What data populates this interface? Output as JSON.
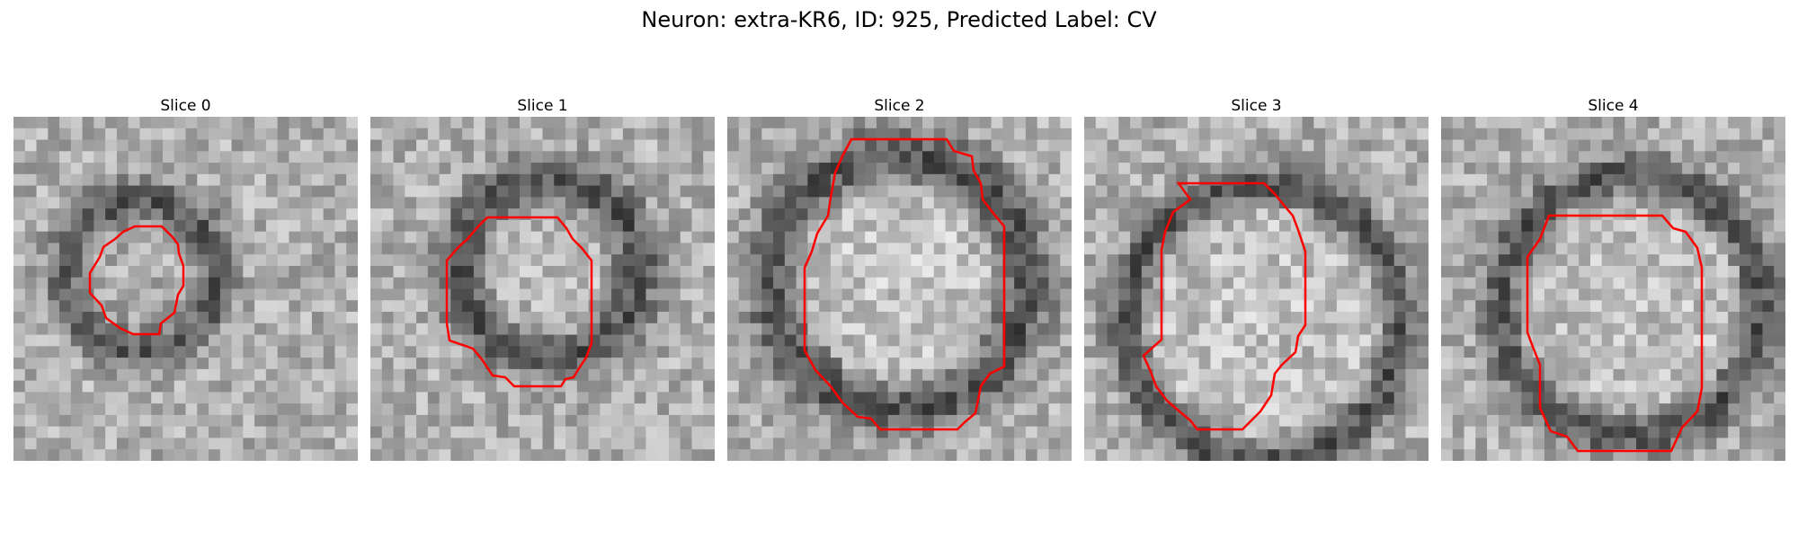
{
  "figure": {
    "suptitle": "Neuron: extra-KR6, ID: 925, Predicted Label: CV",
    "contour_color": "#ff0000"
  },
  "slices": [
    {
      "title": "Slice 0",
      "seed": 11,
      "dark_ring": [
        0.37,
        0.46,
        0.22,
        0.06
      ],
      "bright_center": 0.0
    },
    {
      "title": "Slice 1",
      "seed": 23,
      "dark_ring": [
        0.52,
        0.44,
        0.26,
        0.07
      ],
      "bright_center": 0.35
    },
    {
      "title": "Slice 2",
      "seed": 37,
      "dark_ring": [
        0.5,
        0.48,
        0.37,
        0.08
      ],
      "bright_center": 0.6
    },
    {
      "title": "Slice 3",
      "seed": 41,
      "dark_ring": [
        0.52,
        0.6,
        0.4,
        0.06
      ],
      "bright_center": 0.5
    },
    {
      "title": "Slice 4",
      "seed": 59,
      "dark_ring": [
        0.55,
        0.55,
        0.38,
        0.06
      ],
      "bright_center": 0.45
    }
  ]
}
